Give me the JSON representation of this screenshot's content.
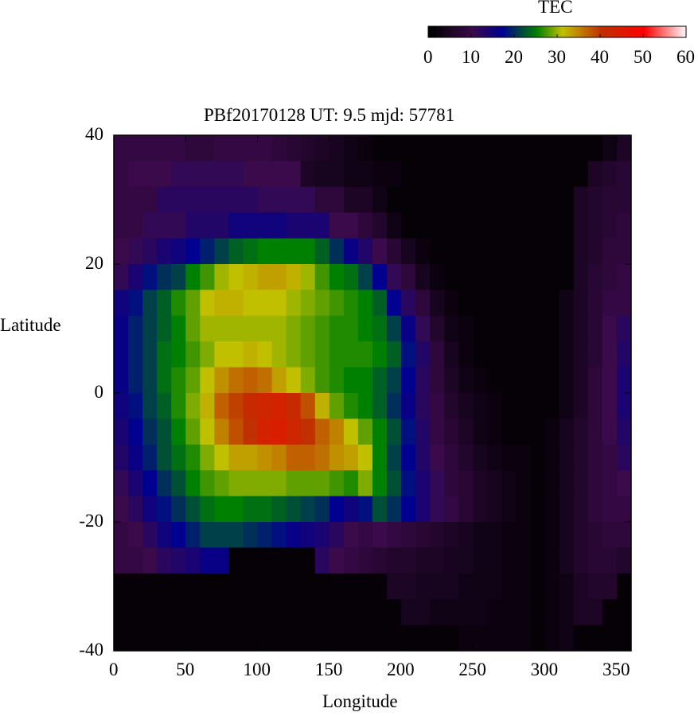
{
  "chart_data": {
    "type": "heatmap",
    "title": "PBf20170128  UT: 9.5  mjd: 57781",
    "xlabel": "Longitude",
    "ylabel": "Latitude",
    "xlim": [
      0,
      360
    ],
    "ylim": [
      -40,
      40
    ],
    "x_ticks": [
      "0",
      "50",
      "100",
      "150",
      "200",
      "250",
      "300",
      "350"
    ],
    "y_ticks": [
      "40",
      "20",
      "0",
      "-20",
      "-40"
    ],
    "colorbar": {
      "label": "TEC",
      "range": [
        0,
        60
      ],
      "ticks": [
        "0",
        "10",
        "20",
        "30",
        "40",
        "50",
        "60"
      ],
      "colors": [
        "#000000",
        "#3a0a4a",
        "#000090",
        "#008000",
        "#c0c000",
        "#c03000",
        "#ff0000",
        "#ffffff"
      ]
    },
    "x": [
      5,
      15,
      25,
      35,
      45,
      55,
      65,
      75,
      85,
      95,
      105,
      115,
      125,
      135,
      145,
      155,
      165,
      175,
      185,
      195,
      205,
      215,
      225,
      235,
      245,
      255,
      265,
      275,
      285,
      295,
      305,
      315,
      325,
      335,
      345,
      355
    ],
    "y": [
      38,
      34,
      30,
      26,
      22,
      18,
      14,
      10,
      6,
      2,
      -2,
      -6,
      -10,
      -14,
      -18,
      -22,
      -26,
      -30,
      -34,
      -38
    ],
    "z": [
      [
        9,
        9,
        9,
        9,
        9,
        8,
        8,
        9,
        9,
        9,
        9,
        8,
        7,
        6,
        5,
        4,
        3,
        2,
        1,
        1,
        1,
        1,
        1,
        1,
        1,
        1,
        1,
        1,
        1,
        1,
        1,
        1,
        1,
        1,
        3,
        5
      ],
      [
        9,
        10,
        10,
        10,
        11,
        11,
        11,
        11,
        11,
        10,
        10,
        10,
        10,
        5,
        4,
        4,
        3,
        3,
        2,
        2,
        1,
        1,
        1,
        1,
        1,
        1,
        1,
        1,
        1,
        1,
        1,
        1,
        1,
        5,
        6,
        7
      ],
      [
        9,
        9,
        9,
        12,
        12,
        12,
        12,
        12,
        12,
        12,
        11,
        11,
        11,
        11,
        8,
        8,
        5,
        5,
        3,
        1,
        1,
        1,
        1,
        1,
        1,
        1,
        1,
        1,
        1,
        1,
        1,
        1,
        5,
        6,
        7,
        7
      ],
      [
        9,
        9,
        11,
        11,
        11,
        13,
        13,
        13,
        15,
        15,
        15,
        15,
        14,
        14,
        14,
        10,
        10,
        8,
        6,
        3,
        1,
        1,
        1,
        1,
        1,
        1,
        1,
        1,
        1,
        1,
        1,
        1,
        5,
        6,
        7,
        8
      ],
      [
        10,
        11,
        12,
        14,
        15,
        17,
        19,
        21,
        23,
        24,
        25,
        25,
        25,
        25,
        23,
        20,
        16,
        13,
        10,
        7,
        4,
        2,
        1,
        1,
        1,
        1,
        1,
        1,
        1,
        1,
        1,
        1,
        5,
        6,
        8,
        8
      ],
      [
        11,
        14,
        18,
        20,
        21,
        25,
        27,
        30,
        31,
        32,
        33,
        33,
        32,
        30,
        27,
        25,
        24,
        21,
        17,
        11,
        8,
        4,
        2,
        1,
        1,
        1,
        1,
        1,
        1,
        1,
        1,
        1,
        5,
        7,
        8,
        9
      ],
      [
        15,
        18,
        21,
        23,
        26,
        28,
        31,
        32,
        32,
        31,
        31,
        31,
        30,
        29,
        28,
        27,
        26,
        25,
        23,
        17,
        12,
        8,
        4,
        2,
        1,
        1,
        1,
        1,
        1,
        1,
        1,
        3,
        5,
        7,
        9,
        9
      ],
      [
        16,
        19,
        21,
        23,
        25,
        28,
        30,
        30,
        30,
        30,
        30,
        30,
        29,
        28,
        27,
        26,
        26,
        25,
        24,
        21,
        16,
        11,
        6,
        3,
        2,
        1,
        1,
        1,
        1,
        1,
        1,
        3,
        5,
        7,
        10,
        12
      ],
      [
        16,
        19,
        21,
        24,
        25,
        27,
        29,
        31,
        31,
        32,
        31,
        30,
        29,
        28,
        27,
        26,
        26,
        26,
        25,
        23,
        18,
        13,
        8,
        4,
        2,
        1,
        1,
        1,
        1,
        1,
        1,
        3,
        5,
        7,
        10,
        13
      ],
      [
        16,
        19,
        21,
        24,
        26,
        28,
        31,
        34,
        36,
        37,
        36,
        33,
        31,
        29,
        27,
        26,
        25,
        25,
        23,
        21,
        17,
        12,
        8,
        5,
        3,
        2,
        1,
        1,
        1,
        1,
        1,
        3,
        5,
        8,
        10,
        14
      ],
      [
        15,
        18,
        21,
        23,
        26,
        29,
        32,
        37,
        39,
        41,
        42,
        43,
        41,
        38,
        32,
        28,
        26,
        25,
        23,
        20,
        16,
        12,
        9,
        6,
        4,
        3,
        2,
        1,
        1,
        1,
        1,
        3,
        5,
        8,
        10,
        14
      ],
      [
        14,
        17,
        20,
        22,
        25,
        28,
        31,
        35,
        38,
        40,
        43,
        44,
        42,
        40,
        37,
        35,
        31,
        28,
        25,
        22,
        18,
        13,
        9,
        7,
        5,
        3,
        2,
        1,
        1,
        1,
        2,
        4,
        6,
        8,
        10,
        13
      ],
      [
        13,
        16,
        19,
        22,
        24,
        26,
        29,
        31,
        33,
        33,
        34,
        35,
        37,
        37,
        36,
        34,
        33,
        31,
        25,
        21,
        17,
        13,
        10,
        8,
        6,
        4,
        3,
        2,
        2,
        1,
        2,
        4,
        6,
        8,
        9,
        12
      ],
      [
        11,
        14,
        17,
        20,
        22,
        25,
        27,
        28,
        29,
        29,
        29,
        29,
        28,
        28,
        28,
        27,
        26,
        29,
        25,
        22,
        18,
        14,
        11,
        8,
        7,
        5,
        4,
        3,
        2,
        1,
        2,
        4,
        6,
        8,
        9,
        10
      ],
      [
        10,
        12,
        15,
        18,
        20,
        22,
        24,
        25,
        25,
        24,
        24,
        23,
        22,
        21,
        20,
        17,
        15,
        18,
        22,
        20,
        17,
        14,
        11,
        9,
        7,
        5,
        4,
        3,
        2,
        1,
        2,
        4,
        6,
        8,
        9,
        9
      ],
      [
        9,
        10,
        12,
        15,
        17,
        19,
        21,
        21,
        21,
        20,
        19,
        18,
        16,
        15,
        14,
        12,
        10,
        9,
        10,
        9,
        8,
        7,
        6,
        5,
        4,
        3,
        3,
        2,
        2,
        1,
        2,
        4,
        6,
        7,
        8,
        8
      ],
      [
        9,
        9,
        10,
        12,
        13,
        14,
        16,
        16,
        1,
        1,
        1,
        1,
        1,
        1,
        12,
        10,
        9,
        8,
        7,
        6,
        6,
        5,
        5,
        4,
        4,
        3,
        3,
        2,
        2,
        1,
        2,
        4,
        6,
        7,
        7,
        6
      ],
      [
        1,
        1,
        1,
        1,
        1,
        1,
        1,
        1,
        1,
        1,
        1,
        1,
        1,
        1,
        1,
        1,
        1,
        1,
        1,
        5,
        5,
        4,
        4,
        4,
        3,
        3,
        3,
        2,
        2,
        1,
        2,
        3,
        5,
        6,
        6,
        1
      ],
      [
        1,
        1,
        1,
        1,
        1,
        1,
        1,
        1,
        1,
        1,
        1,
        1,
        1,
        1,
        1,
        1,
        1,
        1,
        1,
        1,
        4,
        4,
        3,
        3,
        3,
        3,
        2,
        2,
        2,
        1,
        2,
        3,
        5,
        5,
        1,
        1
      ],
      [
        1,
        1,
        1,
        1,
        1,
        1,
        1,
        1,
        1,
        1,
        1,
        1,
        1,
        1,
        1,
        1,
        1,
        1,
        1,
        1,
        1,
        1,
        1,
        1,
        2,
        2,
        2,
        2,
        2,
        1,
        2,
        3,
        1,
        1,
        1,
        1
      ]
    ],
    "grid": false,
    "legend": "colorbar top-right"
  }
}
